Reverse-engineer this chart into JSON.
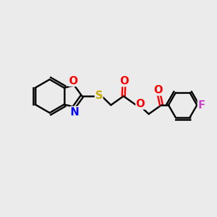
{
  "background_color": "#ebebeb",
  "bond_color": "#000000",
  "o_color": "#ff0000",
  "n_color": "#0000ff",
  "s_color": "#ccaa00",
  "f_color": "#cc44cc",
  "line_width": 1.8,
  "font_size": 11
}
